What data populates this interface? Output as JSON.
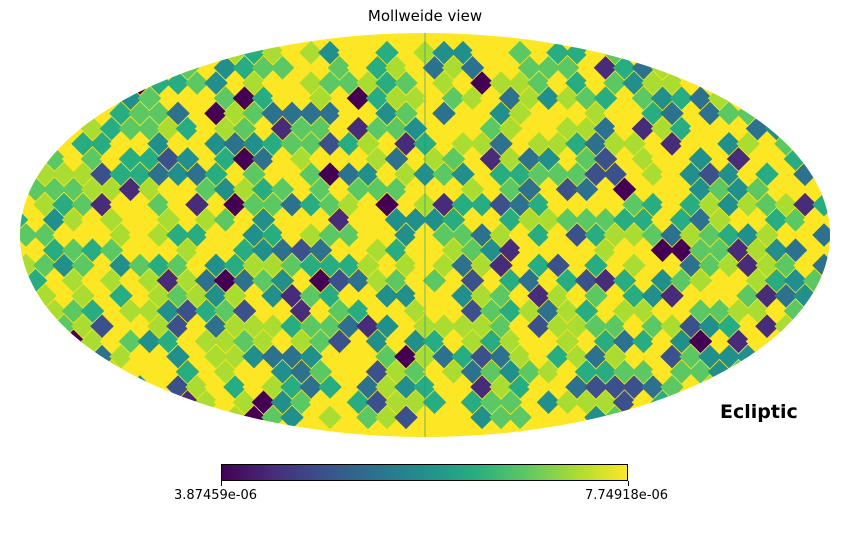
{
  "title": "Mollweide view",
  "coord_label": "Ecliptic",
  "colorbar": {
    "min_label": "3.87459e-06",
    "max_label": "7.74918e-06",
    "min": 3.87459e-06,
    "max": 7.74918e-06,
    "colormap": "viridis",
    "colors": [
      "#440154",
      "#472c7a",
      "#3b518b",
      "#2c718e",
      "#21908d",
      "#27ad81",
      "#5cc863",
      "#aadc32",
      "#fde725"
    ]
  },
  "map": {
    "projection": "mollweide",
    "saturation_color": "#fde725",
    "background": "#ffffff"
  }
}
